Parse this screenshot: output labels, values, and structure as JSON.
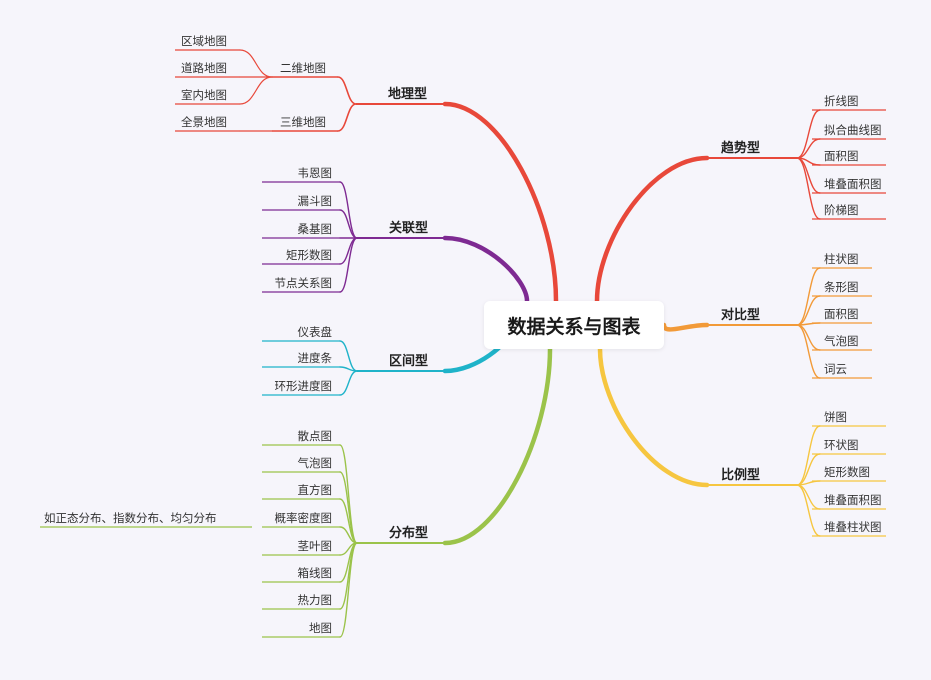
{
  "root": {
    "label": "数据关系与图表"
  },
  "branches": [
    {
      "id": "geo",
      "label": "地理型",
      "color": "#e8483a",
      "children": [
        {
          "label": "二维地图",
          "children": [
            {
              "label": "区域地图"
            },
            {
              "label": "道路地图"
            },
            {
              "label": "室内地图"
            }
          ]
        },
        {
          "label": "三维地图",
          "children": [
            {
              "label": "全景地图"
            }
          ]
        }
      ]
    },
    {
      "id": "assoc",
      "label": "关联型",
      "color": "#7e2a92",
      "children": [
        {
          "label": "韦恩图"
        },
        {
          "label": "漏斗图"
        },
        {
          "label": "桑基图"
        },
        {
          "label": "矩形数图"
        },
        {
          "label": "节点关系图"
        }
      ]
    },
    {
      "id": "interval",
      "label": "区间型",
      "color": "#1fb3c9",
      "children": [
        {
          "label": "仪表盘"
        },
        {
          "label": "进度条"
        },
        {
          "label": "环形进度图"
        }
      ]
    },
    {
      "id": "dist",
      "label": "分布型",
      "color": "#9bc34a",
      "children": [
        {
          "label": "散点图"
        },
        {
          "label": "气泡图"
        },
        {
          "label": "直方图"
        },
        {
          "label": "概率密度图",
          "children": [
            {
              "label": "如正态分布、指数分布、均匀分布"
            }
          ]
        },
        {
          "label": "茎叶图"
        },
        {
          "label": "箱线图"
        },
        {
          "label": "热力图"
        },
        {
          "label": "地图"
        }
      ]
    },
    {
      "id": "trend",
      "label": "趋势型",
      "color": "#e8483a",
      "children": [
        {
          "label": "折线图"
        },
        {
          "label": "拟合曲线图"
        },
        {
          "label": "面积图"
        },
        {
          "label": "堆叠面积图"
        },
        {
          "label": "阶梯图"
        }
      ]
    },
    {
      "id": "compare",
      "label": "对比型",
      "color": "#f29a38",
      "children": [
        {
          "label": "柱状图"
        },
        {
          "label": "条形图"
        },
        {
          "label": "面积图"
        },
        {
          "label": "气泡图"
        },
        {
          "label": "词云"
        }
      ]
    },
    {
      "id": "ratio",
      "label": "比例型",
      "color": "#f6c640",
      "children": [
        {
          "label": "饼图"
        },
        {
          "label": "环状图"
        },
        {
          "label": "矩形数图"
        },
        {
          "label": "堆叠面积图"
        },
        {
          "label": "堆叠柱状图"
        }
      ]
    }
  ]
}
